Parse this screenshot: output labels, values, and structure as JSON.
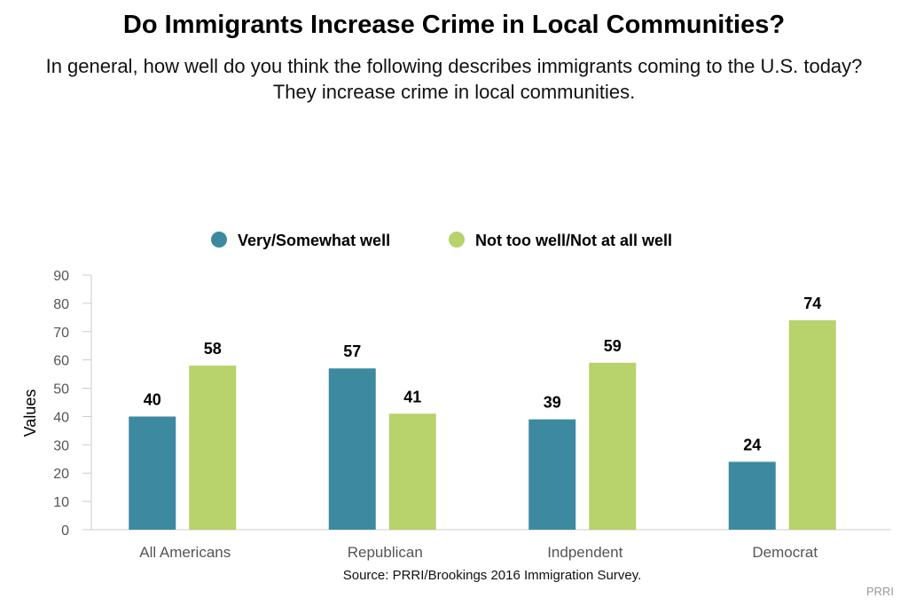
{
  "chart_data": {
    "type": "bar",
    "title": "Do Immigrants Increase Crime in Local Communities?",
    "subtitle": "In general, how well do you think the following describes immigrants coming to the U.S. today? They increase crime in local communities.",
    "categories": [
      "All Americans",
      "Republican",
      "Indpendent",
      "Democrat"
    ],
    "series": [
      {
        "name": "Very/Somewhat well",
        "color": "#3d8aa0",
        "values": [
          40,
          57,
          39,
          24
        ]
      },
      {
        "name": "Not too well/Not at all well",
        "color": "#b8d26c",
        "values": [
          58,
          41,
          59,
          74
        ]
      }
    ],
    "xlabel": "",
    "ylabel": "Values",
    "ylim": [
      0,
      90
    ],
    "yticks": [
      0,
      10,
      20,
      30,
      40,
      50,
      60,
      70,
      80,
      90
    ],
    "legend_position": "top-center",
    "grid": false,
    "source": "Source: PRRI/Brookings 2016 Immigration Survey.",
    "credit": "PRRI"
  }
}
